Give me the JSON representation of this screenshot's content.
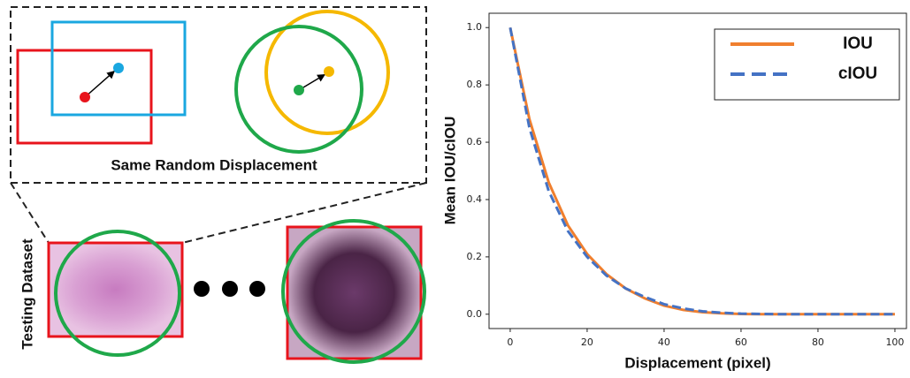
{
  "diagram": {
    "caption": "Same Random Displacement",
    "dataset_label": "Testing Dataset"
  },
  "chart_data": {
    "type": "line",
    "xlabel": "Displacement (pixel)",
    "ylabel": "Mean IOU/cIOU",
    "x": [
      0,
      5,
      10,
      15,
      20,
      25,
      30,
      35,
      40,
      45,
      50,
      55,
      60,
      65,
      70,
      75,
      80,
      85,
      90,
      95,
      100
    ],
    "series": [
      {
        "name": "IOU",
        "color": "#f07f2e",
        "dash": false,
        "values": [
          1.0,
          0.68,
          0.46,
          0.31,
          0.21,
          0.14,
          0.09,
          0.055,
          0.03,
          0.015,
          0.007,
          0.003,
          0.001,
          0,
          0,
          0,
          0,
          0,
          0,
          0,
          0
        ]
      },
      {
        "name": "cIOU",
        "color": "#4472c4",
        "dash": true,
        "values": [
          1.0,
          0.65,
          0.43,
          0.29,
          0.2,
          0.135,
          0.09,
          0.06,
          0.035,
          0.02,
          0.01,
          0.005,
          0.002,
          0.001,
          0,
          0,
          0,
          0,
          0,
          0,
          0
        ]
      }
    ],
    "xlim": [
      -5.5,
      103
    ],
    "ylim": [
      -0.05,
      1.05
    ],
    "xticks": [
      0,
      20,
      40,
      60,
      80,
      100
    ],
    "yticks": [
      {
        "value": 0,
        "label": "0.0"
      },
      0.2,
      0.4,
      0.6,
      0.8,
      {
        "value": 1,
        "label": "1.0"
      }
    ],
    "legend": "upper right"
  }
}
